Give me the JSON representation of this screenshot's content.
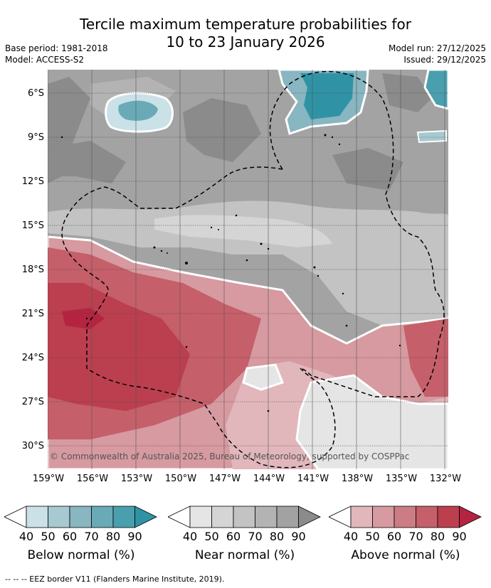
{
  "title_line1": "Tercile maximum temperature probabilities for",
  "title_line2": "10 to 23 January 2026",
  "base_period": "Base period: 1981-2018",
  "model": "Model: ACCESS-S2",
  "model_run": "Model run: 27/12/2025",
  "issued": "Issued: 29/12/2025",
  "copyright": "© Commonwealth of Australia 2025, Bureau of Meteorology, supported by COSPPac",
  "lat_labels": [
    "6°S",
    "9°S",
    "12°S",
    "15°S",
    "18°S",
    "21°S",
    "24°S",
    "27°S",
    "30°S"
  ],
  "lon_labels": [
    "159°W",
    "156°W",
    "153°W",
    "150°W",
    "147°W",
    "144°W",
    "141°W",
    "138°W",
    "135°W",
    "132°W"
  ],
  "colorbars": {
    "below": {
      "title": "Below normal (%)",
      "ticks": [
        "40",
        "50",
        "60",
        "70",
        "80",
        "90"
      ],
      "colors": [
        "#ffffff",
        "#c9e1e7",
        "#a7c9d1",
        "#88b6c1",
        "#6aaab7",
        "#4a9fae",
        "#2f93a5"
      ]
    },
    "near": {
      "title": "Near normal (%)",
      "ticks": [
        "40",
        "50",
        "60",
        "70",
        "80",
        "90"
      ],
      "colors": [
        "#ffffff",
        "#e5e5e5",
        "#d5d5d5",
        "#c3c3c3",
        "#b3b3b3",
        "#a2a2a2",
        "#8b8b8b"
      ]
    },
    "above": {
      "title": "Above normal (%)",
      "ticks": [
        "40",
        "50",
        "60",
        "70",
        "80",
        "90"
      ],
      "colors": [
        "#ffffff",
        "#e1b7bc",
        "#d69aa0",
        "#cc7c84",
        "#c55f6a",
        "#bb3f4e",
        "#b42441"
      ]
    }
  },
  "eez_legend": "--  --  -- EEZ border V11 (Flanders Marine Institute, 2019)."
}
